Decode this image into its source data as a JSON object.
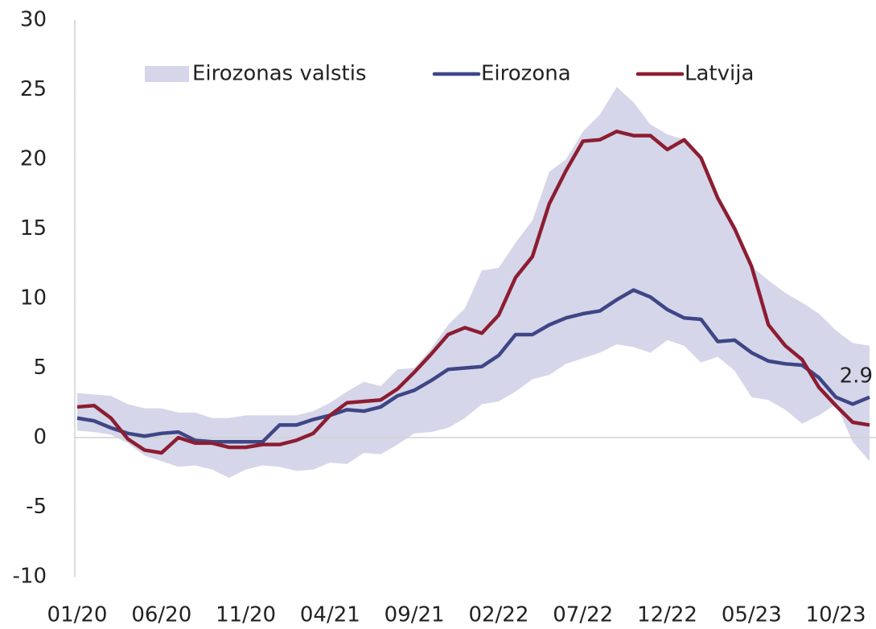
{
  "chart_data": {
    "type": "line",
    "categories": [
      "01/20",
      null,
      null,
      null,
      null,
      "06/20",
      null,
      null,
      null,
      null,
      "11/20",
      null,
      null,
      null,
      null,
      "04/21",
      null,
      null,
      null,
      null,
      "09/21",
      null,
      null,
      null,
      null,
      "02/22",
      null,
      null,
      null,
      null,
      "07/22",
      null,
      null,
      null,
      null,
      "12/22",
      null,
      null,
      null,
      null,
      "05/23",
      null,
      null,
      null,
      null,
      "10/23",
      null,
      null
    ],
    "band": {
      "name": "Eirozonas valstis",
      "color": "#d5d6e9",
      "upper": [
        3.2,
        3.1,
        3.0,
        2.4,
        2.1,
        2.1,
        1.8,
        1.8,
        1.4,
        1.4,
        1.6,
        1.6,
        1.6,
        1.6,
        1.9,
        2.5,
        3.3,
        4.0,
        3.7,
        4.9,
        5.0,
        6.4,
        8.1,
        9.3,
        12.0,
        12.2,
        14.0,
        15.6,
        19.1,
        20.0,
        22.0,
        23.2,
        25.2,
        24.1,
        22.5,
        21.8,
        21.4,
        20.1,
        17.2,
        15.0,
        12.3,
        11.3,
        10.4,
        9.7,
        8.9,
        7.7,
        6.8,
        6.6
      ],
      "lower": [
        0.5,
        0.4,
        0.2,
        -0.4,
        -1.3,
        -1.7,
        -2.1,
        -2.0,
        -2.3,
        -2.9,
        -2.3,
        -2.0,
        -2.1,
        -2.4,
        -2.3,
        -1.8,
        -1.9,
        -1.1,
        -1.2,
        -0.5,
        0.3,
        0.4,
        0.7,
        1.4,
        2.4,
        2.6,
        3.3,
        4.2,
        4.5,
        5.3,
        5.7,
        6.1,
        6.7,
        6.5,
        6.1,
        7.0,
        6.6,
        5.4,
        5.8,
        4.8,
        2.9,
        2.7,
        2.0,
        1.0,
        1.6,
        2.4,
        -0.3,
        -1.7
      ]
    },
    "series": [
      {
        "name": "Eirozona",
        "color": "#3f4686",
        "values": [
          1.4,
          1.2,
          0.7,
          0.3,
          0.1,
          0.3,
          0.4,
          -0.2,
          -0.3,
          -0.3,
          -0.3,
          -0.3,
          0.9,
          0.9,
          1.3,
          1.6,
          2.0,
          1.9,
          2.2,
          3.0,
          3.4,
          4.1,
          4.9,
          5.0,
          5.1,
          5.9,
          7.4,
          7.4,
          8.1,
          8.6,
          8.9,
          9.1,
          9.9,
          10.6,
          10.1,
          9.2,
          8.6,
          8.5,
          6.9,
          7.0,
          6.1,
          5.5,
          5.3,
          5.2,
          4.3,
          2.9,
          2.4,
          2.9
        ],
        "annotation": "2.9"
      },
      {
        "name": "Latvija",
        "color": "#8c1d32",
        "values": [
          2.2,
          2.3,
          1.4,
          -0.1,
          -0.9,
          -1.1,
          0.0,
          -0.4,
          -0.4,
          -0.7,
          -0.7,
          -0.5,
          -0.5,
          -0.2,
          0.3,
          1.6,
          2.5,
          2.6,
          2.7,
          3.5,
          4.7,
          6.0,
          7.4,
          7.9,
          7.5,
          8.8,
          11.5,
          13.0,
          16.8,
          19.2,
          21.3,
          21.4,
          22.0,
          21.7,
          21.7,
          20.7,
          21.4,
          20.1,
          17.2,
          15.0,
          12.3,
          8.1,
          6.6,
          5.6,
          3.6,
          2.3,
          1.1,
          0.9
        ]
      }
    ],
    "ylim": [
      -10,
      30
    ],
    "yticks": [
      -10,
      -5,
      0,
      5,
      10,
      15,
      20,
      25,
      30
    ]
  }
}
